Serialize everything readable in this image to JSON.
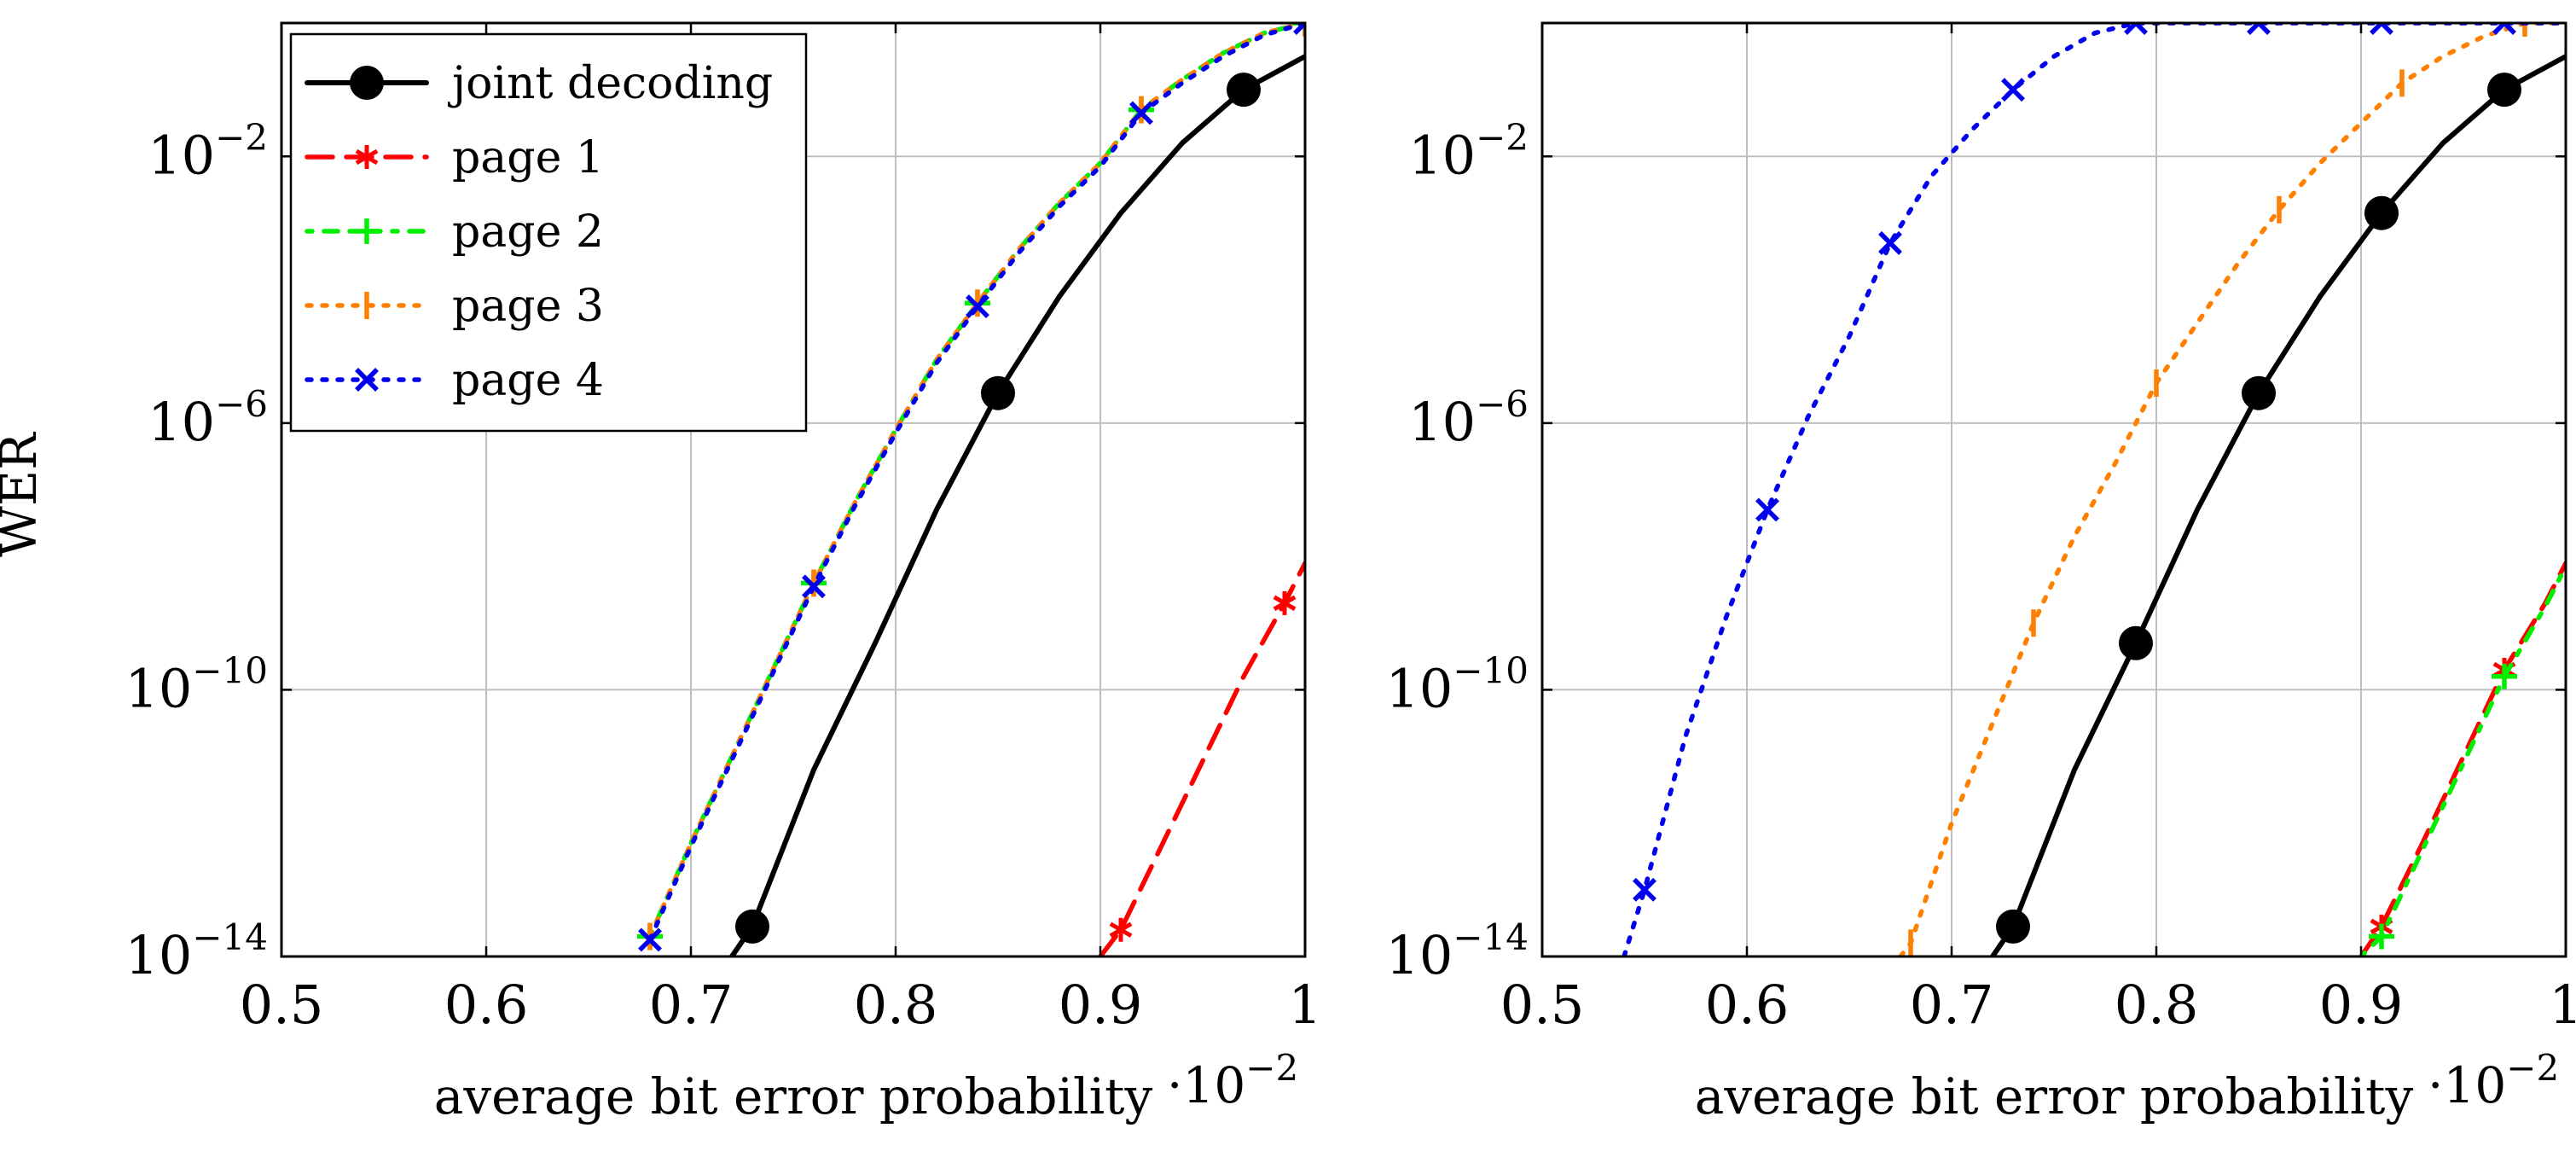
{
  "colors": {
    "joint": "#000000",
    "page1": "#ff0000",
    "page2": "#00ee00",
    "page3": "#ff8000",
    "page4": "#0000ee",
    "grid": "#bfbfbf"
  },
  "chart_data": [
    {
      "type": "line",
      "yscale": "log",
      "xlim": [
        0.5,
        1.0
      ],
      "ylim_exp": [
        -14,
        0
      ],
      "xticks": [
        0.5,
        0.6,
        0.7,
        0.8,
        0.9,
        1.0
      ],
      "xtick_labels": [
        "0.5",
        "0.6",
        "0.7",
        "0.8",
        "0.9",
        "1"
      ],
      "ytick_exps": [
        -14,
        -10,
        -6,
        -2
      ],
      "ytick_base": "10",
      "ytick_sup": [
        "−14",
        "−10",
        "−6",
        "−2"
      ],
      "ylabel": "WER",
      "xlabel": "average bit error probability",
      "xscale_label_base": "·10",
      "xscale_label_exp": "−2",
      "legend": {
        "position": "top-left",
        "entries": [
          "joint decoding",
          "page 1",
          "page 2",
          "page 3",
          "page 4"
        ]
      },
      "series": [
        {
          "name": "joint decoding",
          "color_key": "joint",
          "style": "solid",
          "marker": "dot",
          "x": [
            0.72,
            0.73,
            0.76,
            0.79,
            0.82,
            0.85,
            0.88,
            0.91,
            0.94,
            0.97,
            1.0
          ],
          "y": [
            -14.0,
            -13.55,
            -11.2,
            -9.3,
            -7.3,
            -5.55,
            -4.1,
            -2.85,
            -1.8,
            -1.0,
            -0.5
          ],
          "marker_x": [
            0.73,
            0.85,
            0.97
          ]
        },
        {
          "name": "page 1",
          "color_key": "page1",
          "style": "dashed",
          "marker": "star",
          "x": [
            0.9,
            0.91,
            0.94,
            0.97,
            0.99,
            1.0
          ],
          "y": [
            -14.0,
            -13.6,
            -11.7,
            -9.8,
            -8.7,
            -8.1
          ],
          "marker_x": [
            0.91,
            0.99
          ]
        },
        {
          "name": "page 2",
          "color_key": "page2",
          "style": "dashdot",
          "marker": "plus",
          "x": [
            0.68,
            0.7,
            0.72,
            0.74,
            0.76,
            0.78,
            0.8,
            0.82,
            0.84,
            0.86,
            0.88,
            0.9,
            0.92,
            0.94,
            0.96,
            0.98,
            1.0
          ],
          "y": [
            -13.7,
            -12.3,
            -11.0,
            -9.7,
            -8.4,
            -7.2,
            -6.1,
            -5.05,
            -4.2,
            -3.4,
            -2.7,
            -2.1,
            -1.3,
            -0.85,
            -0.45,
            -0.15,
            0.0
          ],
          "marker_x": [
            0.68,
            0.76,
            0.84,
            0.92,
            1.0
          ]
        },
        {
          "name": "page 3",
          "color_key": "page3",
          "style": "dotted",
          "marker": "vbar",
          "x": [
            0.68,
            0.7,
            0.72,
            0.74,
            0.76,
            0.78,
            0.8,
            0.82,
            0.84,
            0.86,
            0.88,
            0.9,
            0.92,
            0.94,
            0.96,
            0.98,
            1.0
          ],
          "y": [
            -13.7,
            -12.3,
            -11.0,
            -9.7,
            -8.4,
            -7.2,
            -6.1,
            -5.05,
            -4.2,
            -3.4,
            -2.7,
            -2.1,
            -1.3,
            -0.85,
            -0.45,
            -0.15,
            0.0
          ],
          "marker_x": [
            0.68,
            0.76,
            0.84,
            0.92,
            1.0
          ]
        },
        {
          "name": "page 4",
          "color_key": "page4",
          "style": "dotted",
          "marker": "cross",
          "x": [
            0.68,
            0.7,
            0.72,
            0.74,
            0.76,
            0.78,
            0.8,
            0.82,
            0.84,
            0.86,
            0.88,
            0.9,
            0.92,
            0.94,
            0.96,
            0.98,
            1.0
          ],
          "y": [
            -13.75,
            -12.35,
            -11.05,
            -9.75,
            -8.45,
            -7.25,
            -6.15,
            -5.1,
            -4.25,
            -3.45,
            -2.75,
            -2.15,
            -1.35,
            -0.9,
            -0.5,
            -0.18,
            0.0
          ],
          "marker_x": [
            0.68,
            0.76,
            0.84,
            0.92,
            1.0
          ]
        }
      ]
    },
    {
      "type": "line",
      "yscale": "log",
      "xlim": [
        0.5,
        1.0
      ],
      "ylim_exp": [
        -14,
        0
      ],
      "xticks": [
        0.5,
        0.6,
        0.7,
        0.8,
        0.9,
        1.0
      ],
      "xtick_labels": [
        "0.5",
        "0.6",
        "0.7",
        "0.8",
        "0.9",
        "1"
      ],
      "ytick_exps": [
        -14,
        -10,
        -6,
        -2
      ],
      "ytick_base": "10",
      "ytick_sup": [
        "−14",
        "−10",
        "−6",
        "−2"
      ],
      "xlabel": "average bit error probability",
      "xscale_label_base": "·10",
      "xscale_label_exp": "−2",
      "series": [
        {
          "name": "joint decoding",
          "color_key": "joint",
          "style": "solid",
          "marker": "dot",
          "x": [
            0.72,
            0.73,
            0.76,
            0.79,
            0.82,
            0.85,
            0.88,
            0.91,
            0.94,
            0.97,
            1.0
          ],
          "y": [
            -14.0,
            -13.55,
            -11.2,
            -9.3,
            -7.3,
            -5.55,
            -4.1,
            -2.85,
            -1.8,
            -1.0,
            -0.5
          ],
          "marker_x": [
            0.73,
            0.79,
            0.85,
            0.91,
            0.97
          ]
        },
        {
          "name": "page 1",
          "color_key": "page1",
          "style": "dashed",
          "marker": "star",
          "x": [
            0.9,
            0.91,
            0.93,
            0.95,
            0.97,
            0.99,
            1.0
          ],
          "y": [
            -14.0,
            -13.55,
            -12.3,
            -11.0,
            -9.7,
            -8.7,
            -8.1
          ],
          "marker_x": [
            0.91,
            0.97
          ]
        },
        {
          "name": "page 2",
          "color_key": "page2",
          "style": "dashdot",
          "marker": "plus",
          "x": [
            0.9,
            0.91,
            0.93,
            0.95,
            0.97,
            0.99,
            1.0
          ],
          "y": [
            -14.0,
            -13.7,
            -12.4,
            -11.1,
            -9.8,
            -8.75,
            -8.15
          ],
          "marker_x": [
            0.91,
            0.97
          ]
        },
        {
          "name": "page 3",
          "color_key": "page3",
          "style": "dotted",
          "marker": "vbar",
          "x": [
            0.675,
            0.68,
            0.7,
            0.72,
            0.74,
            0.76,
            0.78,
            0.8,
            0.82,
            0.84,
            0.86,
            0.88,
            0.9,
            0.92,
            0.94,
            0.96,
            0.98,
            1.0
          ],
          "y": [
            -14.0,
            -13.8,
            -12.0,
            -10.5,
            -9.0,
            -7.7,
            -6.6,
            -5.4,
            -4.5,
            -3.6,
            -2.8,
            -2.1,
            -1.5,
            -0.9,
            -0.5,
            -0.2,
            0.0,
            0.0
          ],
          "marker_x": [
            0.68,
            0.74,
            0.8,
            0.86,
            0.92,
            0.98
          ]
        },
        {
          "name": "page 4",
          "color_key": "page4",
          "style": "dotted",
          "marker": "cross",
          "x": [
            0.54,
            0.55,
            0.57,
            0.59,
            0.61,
            0.63,
            0.65,
            0.67,
            0.69,
            0.71,
            0.73,
            0.75,
            0.77,
            0.79,
            0.85,
            0.91,
            0.97,
            1.0
          ],
          "y": [
            -14.0,
            -13.0,
            -10.7,
            -8.9,
            -7.3,
            -5.9,
            -4.7,
            -3.3,
            -2.3,
            -1.6,
            -1.0,
            -0.5,
            -0.15,
            0.0,
            0.0,
            0.0,
            0.0,
            0.0
          ],
          "marker_x": [
            0.55,
            0.61,
            0.67,
            0.73,
            0.79,
            0.85,
            0.91,
            0.97
          ]
        }
      ]
    }
  ]
}
